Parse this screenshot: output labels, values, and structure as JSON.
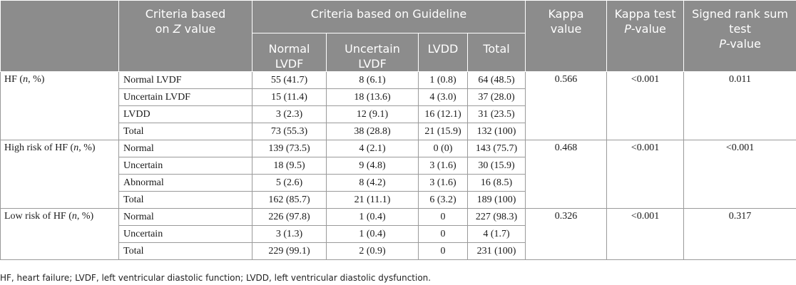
{
  "header": {
    "criteria_z_line1": "Criteria based",
    "criteria_z_on": "on ",
    "criteria_z_z": "Z",
    "criteria_z_value": " value",
    "guideline": "Criteria based on Guideline",
    "sub": [
      {
        "line1": "Normal",
        "line2": "LVDF"
      },
      {
        "line1": "Uncertain",
        "line2": "LVDF"
      },
      {
        "line1": "LVDD",
        "line2": ""
      },
      {
        "line1": "Total",
        "line2": ""
      }
    ],
    "kappa_line1": "Kappa",
    "kappa_line2": "value",
    "kappa_p_line1": "Kappa test",
    "kappa_p_p": "P",
    "kappa_p_value": "-value",
    "signed_line1": "Signed rank sum",
    "signed_line2": "test",
    "signed_p": "P",
    "signed_value": "-value"
  },
  "groups": [
    {
      "label_pre": "HF (",
      "label_n": "n",
      "label_post": ", %)",
      "kappa": "0.566",
      "kappa_p": "<0.001",
      "signed_p": "0.011",
      "rows": [
        {
          "crit": "Normal LVDF",
          "c1": "55 (41.7)",
          "c2": "8 (6.1)",
          "c3": "1 (0.8)",
          "c4": "64 (48.5)"
        },
        {
          "crit": "Uncertain LVDF",
          "c1": "15 (11.4)",
          "c2": "18 (13.6)",
          "c3": "4 (3.0)",
          "c4": "37 (28.0)"
        },
        {
          "crit": "LVDD",
          "c1": "3 (2.3)",
          "c2": "12 (9.1)",
          "c3": "16 (12.1)",
          "c4": "31 (23.5)"
        },
        {
          "crit": "Total",
          "c1": "73 (55.3)",
          "c2": "38 (28.8)",
          "c3": "21 (15.9)",
          "c4": "132 (100)"
        }
      ]
    },
    {
      "label_pre": "High risk of HF (",
      "label_n": "n",
      "label_post": ", %)",
      "kappa": "0.468",
      "kappa_p": "<0.001",
      "signed_p": "<0.001",
      "rows": [
        {
          "crit": "Normal",
          "c1": "139 (73.5)",
          "c2": "4 (2.1)",
          "c3": "0 (0)",
          "c4": "143 (75.7)"
        },
        {
          "crit": "Uncertain",
          "c1": "18 (9.5)",
          "c2": "9 (4.8)",
          "c3": "3 (1.6)",
          "c4": "30 (15.9)"
        },
        {
          "crit": "Abnormal",
          "c1": "5 (2.6)",
          "c2": "8 (4.2)",
          "c3": "3 (1.6)",
          "c4": "16 (8.5)"
        },
        {
          "crit": "Total",
          "c1": "162 (85.7)",
          "c2": "21 (11.1)",
          "c3": "6 (3.2)",
          "c4": "189 (100)"
        }
      ]
    },
    {
      "label_pre": "Low risk of HF (",
      "label_n": "n",
      "label_post": ", %)",
      "kappa": "0.326",
      "kappa_p": "<0.001",
      "signed_p": "0.317",
      "rows": [
        {
          "crit": "Normal",
          "c1": "226 (97.8)",
          "c2": "1 (0.4)",
          "c3": "0",
          "c4": "227 (98.3)"
        },
        {
          "crit": "Uncertain",
          "c1": "3 (1.3)",
          "c2": "1 (0.4)",
          "c3": "0",
          "c4": "4 (1.7)"
        },
        {
          "crit": "Total",
          "c1": "229 (99.1)",
          "c2": "2 (0.9)",
          "c3": "0",
          "c4": "231 (100)"
        }
      ]
    }
  ],
  "footnote": "HF, heart failure; LVDF, left ventricular diastolic function; LVDD, left ventricular diastolic dysfunction.",
  "colors": {
    "header_bg": "#8c8c8c",
    "header_text": "#ffffff",
    "border": "#9a9a9a"
  }
}
